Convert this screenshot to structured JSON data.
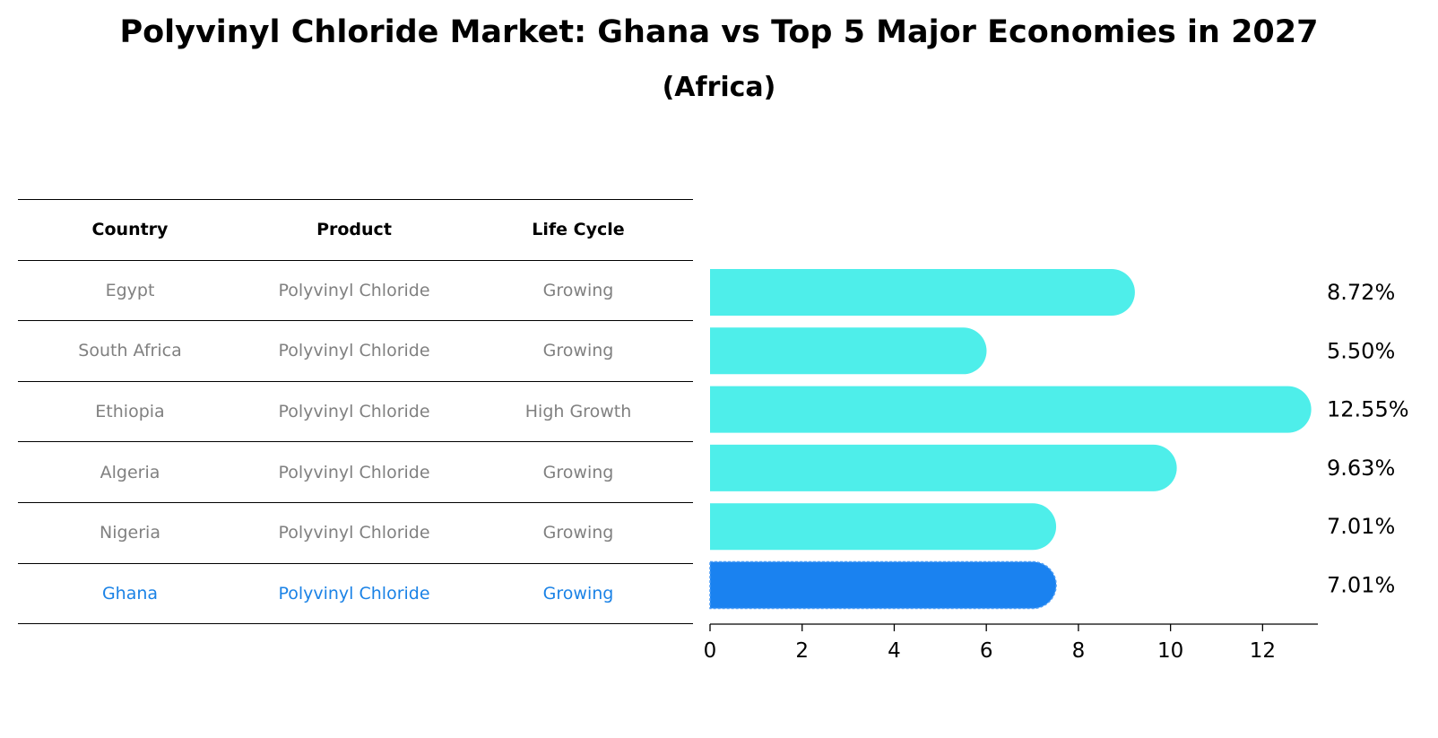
{
  "title": "Polyvinyl Chloride Market: Ghana vs Top 5 Major Economies in 2027",
  "subtitle": "(Africa)",
  "table": {
    "headers": [
      "Country",
      "Product",
      "Life Cycle"
    ],
    "rows": [
      {
        "country": "Egypt",
        "product": "Polyvinyl Chloride",
        "life_cycle": "Growing"
      },
      {
        "country": "South Africa",
        "product": "Polyvinyl Chloride",
        "life_cycle": "Growing"
      },
      {
        "country": "Ethiopia",
        "product": "Polyvinyl Chloride",
        "life_cycle": "High Growth"
      },
      {
        "country": "Algeria",
        "product": "Polyvinyl Chloride",
        "life_cycle": "Growing"
      },
      {
        "country": "Nigeria",
        "product": "Polyvinyl Chloride",
        "life_cycle": "Growing"
      },
      {
        "country": "Ghana",
        "product": "Polyvinyl Chloride",
        "life_cycle": "Growing"
      }
    ]
  },
  "colors": {
    "bar": "#4eeeea",
    "highlight": "#1a82f0",
    "highlight_text": "#1a82e6",
    "muted_text": "#808080"
  },
  "chart_data": {
    "type": "bar",
    "orientation": "horizontal",
    "categories": [
      "Egypt",
      "South Africa",
      "Ethiopia",
      "Algeria",
      "Nigeria",
      "Ghana"
    ],
    "values": [
      8.72,
      5.5,
      12.55,
      9.63,
      7.01,
      7.01
    ],
    "value_labels": [
      "8.72%",
      "5.50%",
      "12.55%",
      "9.63%",
      "7.01%",
      "7.01%"
    ],
    "highlight_category": "Ghana",
    "xlim": [
      0,
      13.2
    ],
    "xticks": [
      0,
      2,
      4,
      6,
      8,
      10,
      12
    ],
    "xlabel": "",
    "ylabel": ""
  }
}
